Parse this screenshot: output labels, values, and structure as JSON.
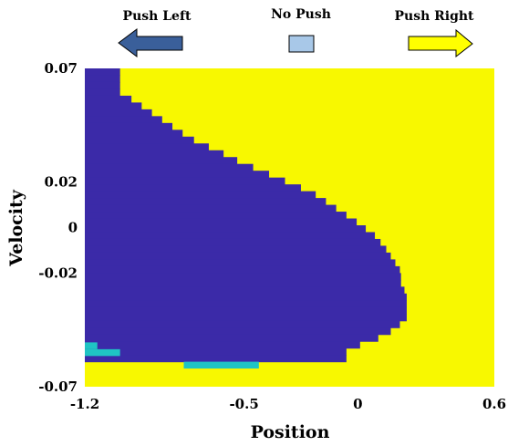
{
  "chart_data": {
    "type": "heatmap",
    "title": "",
    "xlabel": "Position",
    "ylabel": "Velocity",
    "xlim": [
      -1.2,
      0.6
    ],
    "ylim": [
      -0.07,
      0.07
    ],
    "x_ticks": [
      {
        "value": -1.2,
        "label": "-1.2"
      },
      {
        "value": -0.5,
        "label": "-0.5"
      },
      {
        "value": 0,
        "label": "0"
      },
      {
        "value": 0.6,
        "label": "0.6"
      }
    ],
    "y_ticks": [
      {
        "value": 0.07,
        "label": "0.07"
      },
      {
        "value": 0.02,
        "label": "0.02"
      },
      {
        "value": 0,
        "label": "0"
      },
      {
        "value": -0.02,
        "label": "-0.02"
      },
      {
        "value": -0.07,
        "label": "-0.07"
      }
    ],
    "legend": {
      "placement": "top",
      "items": [
        {
          "label": "Push Left",
          "color": "#3a5f9a",
          "icon": "left-arrow-icon"
        },
        {
          "label": "No Push",
          "color": "#a8c8e8",
          "icon": "square-icon"
        },
        {
          "label": "Push Right",
          "color": "#ffff00",
          "icon": "right-arrow-icon"
        }
      ]
    },
    "colors": {
      "push_left": "#3b2aa8",
      "no_push": "#1fc4c4",
      "push_right": "#f8f800"
    },
    "background_action": "Push Right",
    "push_left_region": {
      "velocity_rows": [
        {
          "v": 0.0685,
          "x_max": -1.045
        },
        {
          "v": 0.0655,
          "x_max": -1.045
        },
        {
          "v": 0.0625,
          "x_max": -1.045
        },
        {
          "v": 0.0595,
          "x_max": -1.045
        },
        {
          "v": 0.0565,
          "x_max": -0.995
        },
        {
          "v": 0.0535,
          "x_max": -0.95
        },
        {
          "v": 0.0505,
          "x_max": -0.905
        },
        {
          "v": 0.0475,
          "x_max": -0.86
        },
        {
          "v": 0.0445,
          "x_max": -0.815
        },
        {
          "v": 0.0415,
          "x_max": -0.77
        },
        {
          "v": 0.0385,
          "x_max": -0.72
        },
        {
          "v": 0.0355,
          "x_max": -0.655
        },
        {
          "v": 0.0325,
          "x_max": -0.59
        },
        {
          "v": 0.0295,
          "x_max": -0.53
        },
        {
          "v": 0.0265,
          "x_max": -0.46
        },
        {
          "v": 0.0235,
          "x_max": -0.39
        },
        {
          "v": 0.0205,
          "x_max": -0.32
        },
        {
          "v": 0.0175,
          "x_max": -0.25
        },
        {
          "v": 0.0145,
          "x_max": -0.185
        },
        {
          "v": 0.0115,
          "x_max": -0.14
        },
        {
          "v": 0.0085,
          "x_max": -0.095
        },
        {
          "v": 0.0055,
          "x_max": -0.05
        },
        {
          "v": 0.0025,
          "x_max": -0.005
        },
        {
          "v": -0.0005,
          "x_max": 0.035
        },
        {
          "v": -0.0035,
          "x_max": 0.075
        },
        {
          "v": -0.0065,
          "x_max": 0.1
        },
        {
          "v": -0.0095,
          "x_max": 0.125
        },
        {
          "v": -0.0125,
          "x_max": 0.145
        },
        {
          "v": -0.0155,
          "x_max": 0.165
        },
        {
          "v": -0.0185,
          "x_max": 0.185
        },
        {
          "v": -0.0215,
          "x_max": 0.19
        },
        {
          "v": -0.0245,
          "x_max": 0.19
        },
        {
          "v": -0.0275,
          "x_max": 0.205
        },
        {
          "v": -0.0305,
          "x_max": 0.215
        },
        {
          "v": -0.0335,
          "x_max": 0.215
        },
        {
          "v": -0.0365,
          "x_max": 0.215
        },
        {
          "v": -0.0395,
          "x_max": 0.215
        },
        {
          "v": -0.0425,
          "x_max": 0.185
        },
        {
          "v": -0.0455,
          "x_max": 0.145
        },
        {
          "v": -0.0485,
          "x_max": 0.09
        },
        {
          "v": -0.0515,
          "x_max": 0.01
        },
        {
          "v": -0.0545,
          "x_max": -0.05
        },
        {
          "v": -0.0575,
          "x_max": -0.05
        }
      ],
      "row_height": 0.003
    },
    "no_push_cells": [
      {
        "x0": -1.2,
        "x1": -1.145,
        "v0": -0.0535,
        "v1": -0.0505
      },
      {
        "x0": -1.2,
        "x1": -1.045,
        "v0": -0.0565,
        "v1": -0.0535
      },
      {
        "x0": -0.765,
        "x1": -0.435,
        "v0": -0.062,
        "v1": -0.059
      }
    ]
  }
}
